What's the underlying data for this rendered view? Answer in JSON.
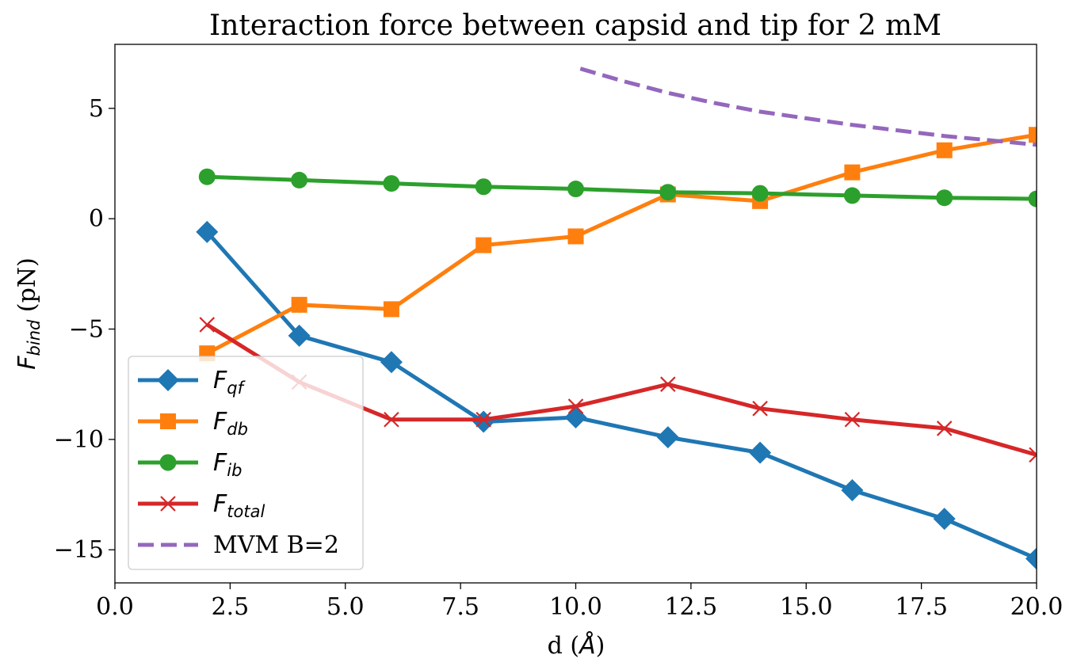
{
  "chart_data": {
    "type": "line",
    "title": "Interaction force between capsid and tip for 2 mM",
    "xlabel": {
      "main": "d (",
      "symbol": "Å",
      "close": ")"
    },
    "ylabel": {
      "symbol": "F",
      "sub": "bind",
      "rest": " (pN)"
    },
    "xlim": [
      0,
      20
    ],
    "ylim": [
      -16.5,
      7.9
    ],
    "xticks": [
      "0.0",
      "2.5",
      "5.0",
      "7.5",
      "10.0",
      "12.5",
      "15.0",
      "17.5",
      "20.0"
    ],
    "yticks": [
      "5",
      "0",
      "−5",
      "−10",
      "−15"
    ],
    "ytick_values": [
      5,
      0,
      -5,
      -10,
      -15
    ],
    "xtick_values": [
      0,
      2.5,
      5,
      7.5,
      10,
      12.5,
      15,
      17.5,
      20
    ],
    "grid": false,
    "legend_position": "lower-left",
    "series": [
      {
        "name": "F_qf",
        "label": {
          "base": "F",
          "sub": "qf"
        },
        "color": "#1f77b4",
        "marker": "diamond",
        "style": "solid",
        "x": [
          2,
          4,
          6,
          8,
          10,
          12,
          14,
          16,
          18,
          20
        ],
        "y": [
          -0.6,
          -5.3,
          -6.5,
          -9.2,
          -9.0,
          -9.9,
          -10.6,
          -12.3,
          -13.6,
          -15.4
        ]
      },
      {
        "name": "F_db",
        "label": {
          "base": "F",
          "sub": "db"
        },
        "color": "#ff7f0e",
        "marker": "square",
        "style": "solid",
        "x": [
          2,
          4,
          6,
          8,
          10,
          12,
          14,
          16,
          18,
          20
        ],
        "y": [
          -6.1,
          -3.9,
          -4.1,
          -1.2,
          -0.8,
          1.1,
          0.8,
          2.1,
          3.1,
          3.8
        ]
      },
      {
        "name": "F_ib",
        "label": {
          "base": "F",
          "sub": "ib"
        },
        "color": "#2ca02c",
        "marker": "circle",
        "style": "solid",
        "x": [
          2,
          4,
          6,
          8,
          10,
          12,
          14,
          16,
          18,
          20
        ],
        "y": [
          1.9,
          1.75,
          1.6,
          1.45,
          1.35,
          1.2,
          1.15,
          1.05,
          0.95,
          0.9
        ]
      },
      {
        "name": "F_total",
        "label": {
          "base": "F",
          "sub": "total"
        },
        "color": "#d62728",
        "marker": "x",
        "style": "solid",
        "x": [
          2,
          4,
          6,
          8,
          10,
          12,
          14,
          16,
          18,
          20
        ],
        "y": [
          -4.8,
          -7.4,
          -9.1,
          -9.1,
          -8.5,
          -7.5,
          -8.6,
          -9.1,
          -9.5,
          -10.7
        ]
      },
      {
        "name": "MVM B=2",
        "label": {
          "base": "MVM B=2",
          "sub": ""
        },
        "color": "#9467bd",
        "marker": "none",
        "style": "dashed",
        "x": [
          10.1,
          11,
          12,
          13,
          14,
          15,
          16,
          17,
          18,
          19,
          20
        ],
        "y": [
          6.8,
          6.25,
          5.7,
          5.25,
          4.85,
          4.55,
          4.25,
          4.0,
          3.75,
          3.55,
          3.35
        ]
      }
    ]
  }
}
